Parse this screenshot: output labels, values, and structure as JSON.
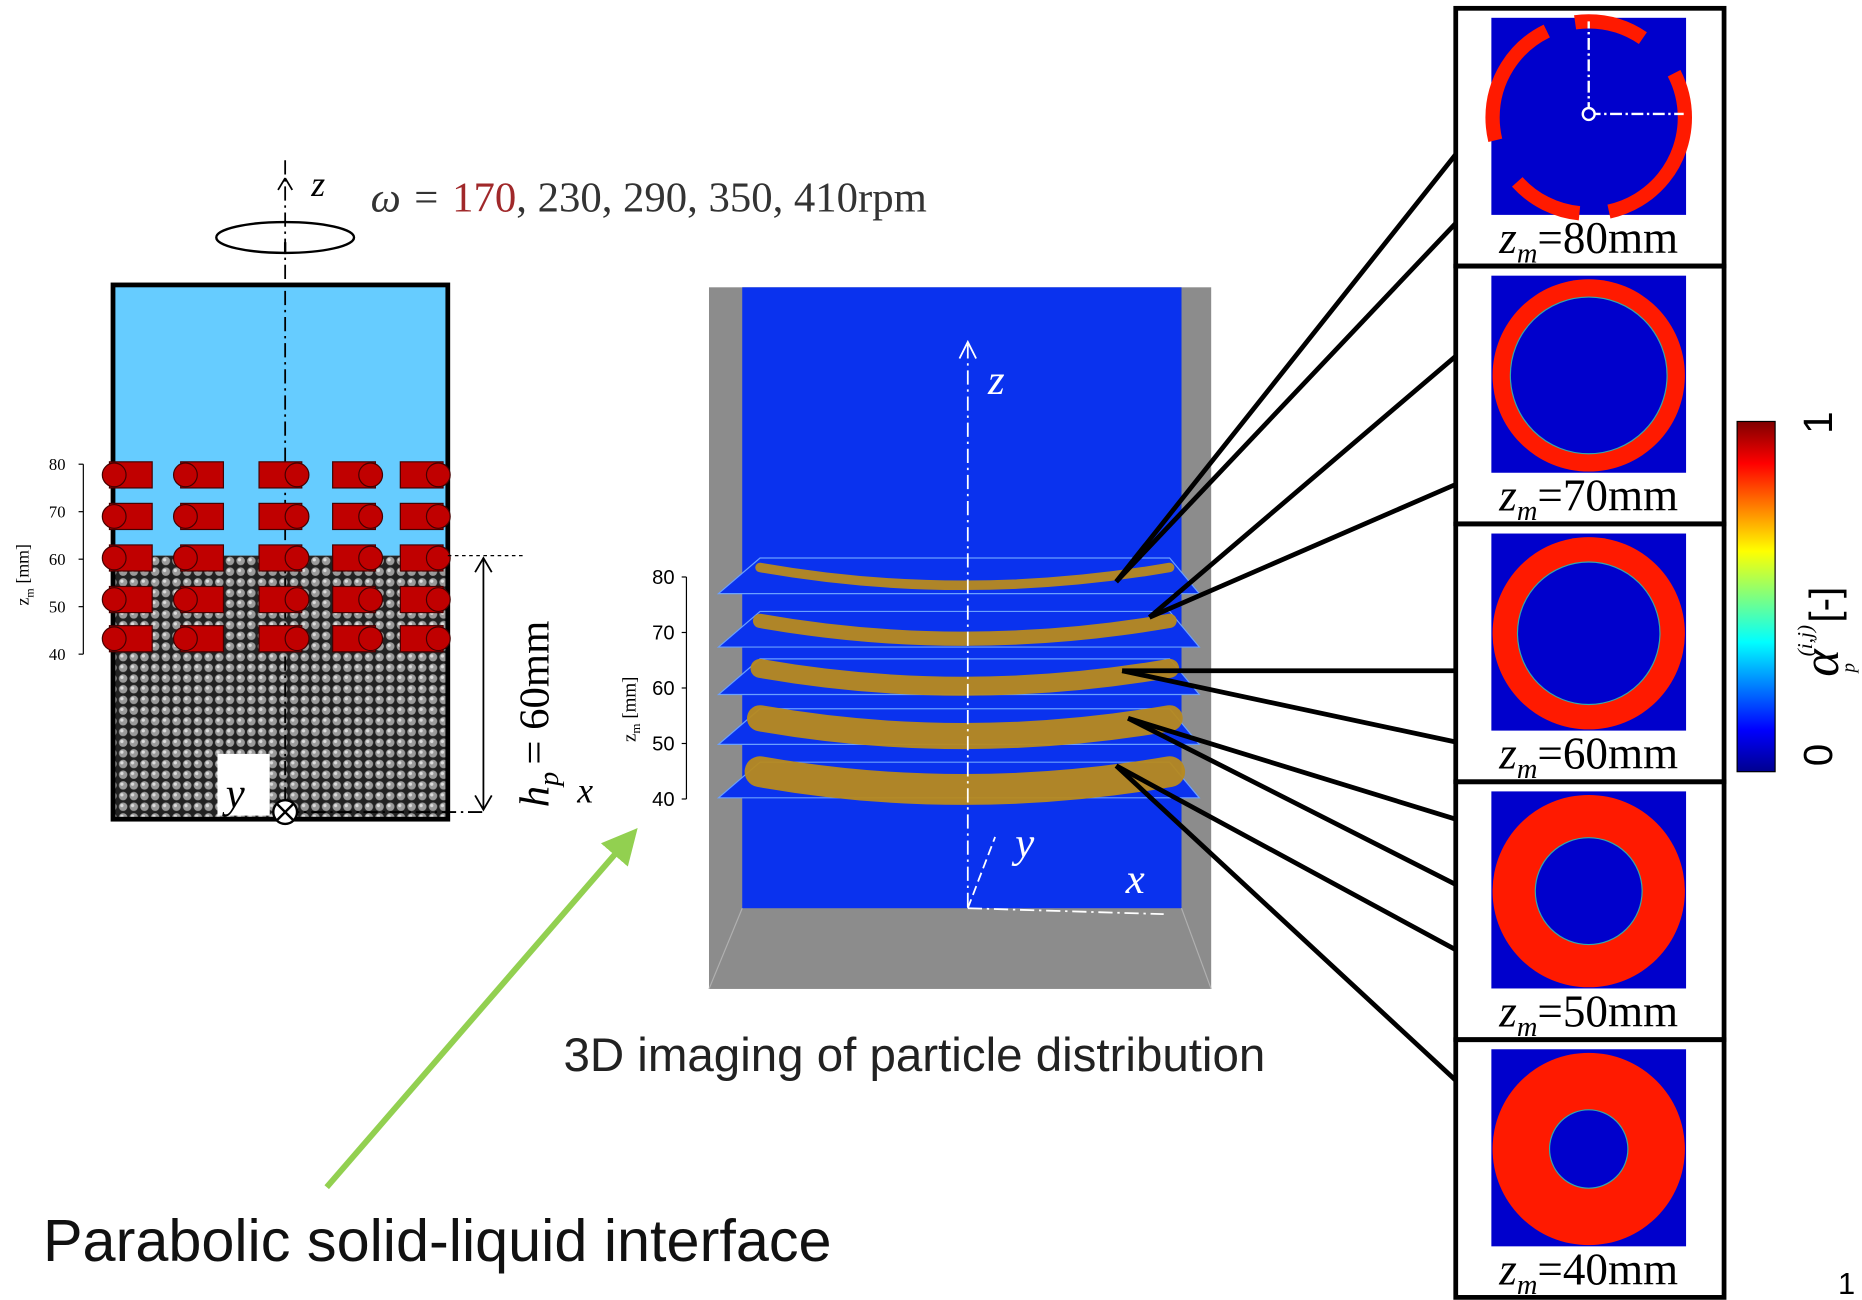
{
  "rotation": {
    "omega": "ω =",
    "speeds": [
      "170",
      "230",
      "290",
      "350",
      "410rpm"
    ]
  },
  "left_diagram": {
    "axis_z": "z",
    "axis_x": "x",
    "axis_y": "y",
    "zm_axis": {
      "label_main": "z",
      "label_sub": "m",
      "label_unit": "[mm]",
      "ticks": [
        80,
        70,
        60,
        50,
        40
      ]
    },
    "height_label": {
      "main": "h",
      "sub": "p",
      "value": "= 60mm"
    }
  },
  "center_image": {
    "axis_z": "z",
    "axis_x": "x",
    "axis_y": "y",
    "zm_axis": {
      "label_main": "z",
      "label_sub": "m",
      "label_unit": "[mm]",
      "ticks": [
        80,
        70,
        60,
        50,
        40
      ]
    },
    "caption": "3D imaging of particle distribution"
  },
  "annotation": "Parabolic solid-liquid interface",
  "slices": [
    {
      "symbol": "z",
      "sub": "m",
      "value": "=80mm"
    },
    {
      "symbol": "z",
      "sub": "m",
      "value": "=70mm"
    },
    {
      "symbol": "z",
      "sub": "m",
      "value": "=60mm"
    },
    {
      "symbol": "z",
      "sub": "m",
      "value": "=50mm"
    },
    {
      "symbol": "z",
      "sub": "m",
      "value": "=40mm"
    }
  ],
  "colorbar": {
    "min": "0",
    "max": "1",
    "symbol": "α",
    "sub": "p",
    "sup": "(i,j)",
    "unit": "[-]"
  },
  "page_number": "1"
}
